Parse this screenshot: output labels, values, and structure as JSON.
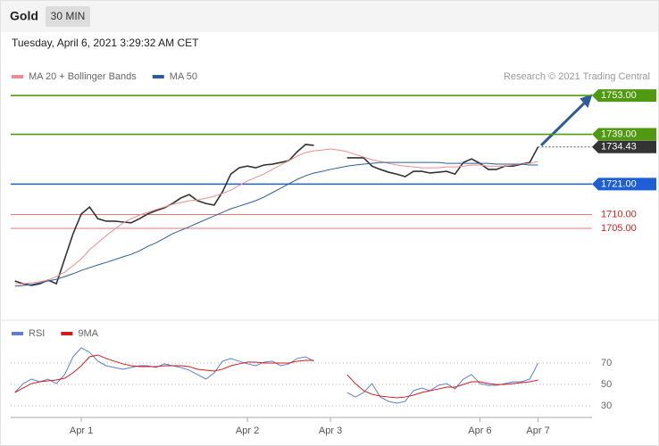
{
  "header": {
    "title": "Gold",
    "timeframe": "30 MIN",
    "timestamp": "Tuesday, April 6, 2021 3:29:32 AM CET"
  },
  "chart_data": [
    {
      "type": "line",
      "note": "Research © 2021 Trading Central",
      "ylim": [
        1673.1,
        1756.9
      ],
      "series": [
        {
          "color": "#333333",
          "values": [
            1686,
            1685,
            1684.4,
            1685,
            1686.3,
            1685,
            1694,
            1703,
            1710.2,
            1712.7,
            1708.5,
            1707.6,
            1707.6,
            1707.3,
            1707,
            1708.5,
            1710.2,
            1711.4,
            1712.4,
            1714,
            1716,
            1717.2,
            1715,
            1714,
            1713.4,
            1718.2,
            1724.6,
            1726.9,
            1727.5,
            1726.9,
            1727.9,
            1728.2,
            1728.8,
            1729.5,
            1732.7,
            1735.3,
            1735,
            null,
            null,
            null,
            1730.5,
            1730.5,
            1730.5,
            1727.5,
            1726.3,
            1725.3,
            1724.6,
            1723.7,
            1725.6,
            1725.6,
            1725,
            1725.3,
            1725.6,
            1724.6,
            1728.8,
            1730.1,
            1728.5,
            1726.3,
            1726.3,
            1727.5,
            1727.5,
            1728.2,
            1728.8,
            1734.43
          ]
        },
        {
          "name": "MA 20 + Bollinger Bands",
          "color": "#f08c8c",
          "values": [
            1685,
            1685,
            1685.3,
            1685.7,
            1686.3,
            1687.6,
            1689.2,
            1691.5,
            1694,
            1697.3,
            1699.8,
            1702.4,
            1704.7,
            1706.9,
            1708.5,
            1709.8,
            1710.8,
            1711.8,
            1712.7,
            1713.7,
            1714.3,
            1715,
            1715.3,
            1715.9,
            1716.6,
            1717.6,
            1718.8,
            1720.5,
            1722.1,
            1723.4,
            1724.6,
            1726.3,
            1727.9,
            1729.5,
            1731.1,
            1732.4,
            1733,
            1733.3,
            1733.7,
            1733.3,
            1732.7,
            1731.7,
            1730.8,
            1729.8,
            1729.2,
            1728.5,
            1727.9,
            1727.5,
            1727.2,
            1726.9,
            1726.9,
            1726.9,
            1727.2,
            1727.2,
            1727.5,
            1727.9,
            1727.9,
            1727.5,
            1727.5,
            1727.5,
            1727.9,
            1728.2,
            1728.5,
            1729.2
          ]
        },
        {
          "name": "MA 50",
          "color": "#2e5c9a",
          "values": [
            1684.1,
            1684.4,
            1684.7,
            1685.3,
            1686,
            1686.6,
            1687.6,
            1688.6,
            1689.8,
            1690.8,
            1691.8,
            1692.7,
            1693.7,
            1694.7,
            1695.6,
            1696.9,
            1698.5,
            1699.8,
            1701.4,
            1703.1,
            1704.3,
            1705.6,
            1706.9,
            1708.2,
            1709.5,
            1710.8,
            1712.1,
            1713,
            1714,
            1715,
            1716.3,
            1717.9,
            1719.5,
            1721.1,
            1722.7,
            1724,
            1725,
            1725.6,
            1726.3,
            1726.9,
            1727.5,
            1727.9,
            1728.2,
            1728.5,
            1728.8,
            1728.8,
            1728.8,
            1728.8,
            1728.8,
            1728.8,
            1728.8,
            1728.8,
            1728.5,
            1728.5,
            1728.5,
            1728.5,
            1728.5,
            1728.5,
            1728.2,
            1728.2,
            1728.2,
            1728.2,
            1727.9,
            1727.9
          ]
        }
      ],
      "levels": [
        {
          "value": 1753,
          "label": "1753.00",
          "color": "#4f9a10",
          "boxed": true
        },
        {
          "value": 1739,
          "label": "1739.00",
          "color": "#4f9a10",
          "boxed": true
        },
        {
          "value": 1734.43,
          "label": "1734.43",
          "color": "#333333",
          "boxed": true,
          "dotted": true
        },
        {
          "value": 1721,
          "label": "1721.00",
          "color": "#1f5fd6",
          "boxed": true
        },
        {
          "value": 1710,
          "label": "1710.00",
          "color": "#d62020",
          "boxed": false
        },
        {
          "value": 1705,
          "label": "1705.00",
          "color": "#d62020",
          "boxed": false
        }
      ]
    },
    {
      "type": "line",
      "ylim": [
        24.2,
        88.3
      ],
      "yticks": [
        70,
        50,
        30
      ],
      "categories": [
        null,
        null,
        null,
        null,
        null,
        null,
        null,
        null,
        "Apr 1",
        null,
        null,
        null,
        null,
        null,
        null,
        null,
        null,
        null,
        null,
        null,
        null,
        null,
        null,
        null,
        null,
        null,
        null,
        null,
        "Apr 2",
        null,
        null,
        null,
        null,
        null,
        null,
        null,
        null,
        null,
        "Apr 3",
        null,
        null,
        null,
        null,
        null,
        null,
        null,
        null,
        null,
        null,
        null,
        null,
        null,
        null,
        null,
        null,
        null,
        "Apr 6",
        null,
        null,
        null,
        null,
        null,
        null,
        "Apr 7"
      ],
      "series": [
        {
          "name": "RSI",
          "color": "#5b7fd1",
          "values": [
            42.5,
            50.8,
            55,
            52.5,
            55,
            50.8,
            59.2,
            75.8,
            84.2,
            80,
            71.7,
            67.5,
            65.8,
            64.2,
            65.8,
            67.5,
            67.5,
            65.8,
            69.2,
            67.5,
            65.8,
            63.3,
            59.2,
            55,
            60.8,
            71.7,
            74.2,
            71.7,
            69.2,
            67.5,
            70.8,
            71.7,
            67.5,
            69.2,
            74.2,
            75.8,
            71.7,
            null,
            null,
            null,
            42.5,
            38.3,
            42.5,
            50.8,
            38.3,
            34.2,
            32.5,
            34.2,
            44.2,
            46.7,
            44.2,
            49.2,
            50.8,
            45.8,
            55,
            59.2,
            50.8,
            49.2,
            49.2,
            50.8,
            52.5,
            52.5,
            55,
            70
          ]
        },
        {
          "name": "9MA",
          "color": "#d61a1a",
          "values": [
            42.5,
            46.7,
            50.8,
            52.5,
            53.3,
            54.2,
            55.8,
            60.8,
            67.5,
            75.8,
            77.5,
            74.2,
            71.7,
            69.2,
            67.5,
            66.7,
            66.7,
            66.7,
            67.5,
            67.5,
            67.5,
            66.7,
            64.2,
            63.3,
            62.5,
            64.2,
            67.5,
            69.2,
            70.8,
            70.8,
            70,
            70,
            70,
            70,
            71.7,
            72.5,
            72.5,
            null,
            null,
            null,
            59.2,
            50.8,
            44.2,
            40.8,
            39.2,
            38.3,
            37.5,
            38.3,
            40,
            42.5,
            44.2,
            45.8,
            47.5,
            47.5,
            50,
            52.5,
            52.5,
            50.8,
            50,
            50,
            50.8,
            51.7,
            52.5,
            54.2
          ]
        }
      ]
    }
  ]
}
